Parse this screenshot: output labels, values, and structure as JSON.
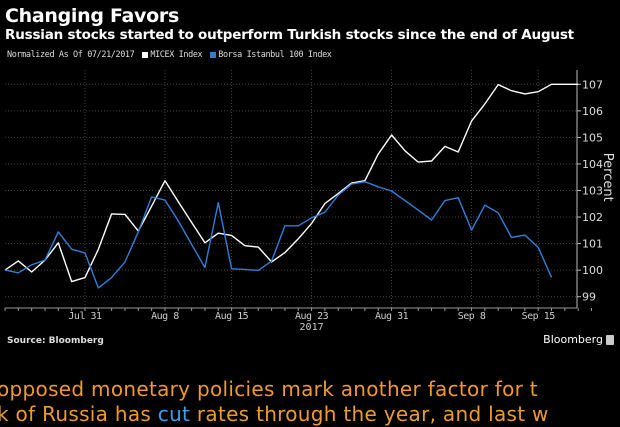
{
  "header": {
    "title": "Changing Favors",
    "subtitle": "Russian stocks started to outperform Turkish stocks since the end of August"
  },
  "legend": {
    "note": "Normalized As Of 07/21/2017",
    "items": [
      {
        "label": "MICEX Index",
        "color": "#ffffff"
      },
      {
        "label": "Borsa Istanbul 100 Index",
        "color": "#2f7fd6"
      }
    ]
  },
  "chart_data": {
    "type": "line",
    "title": "Changing Favors",
    "ylabel": "Percent",
    "xlabel": "2017",
    "ylim": [
      98.6,
      107.9
    ],
    "yticks": [
      99,
      100,
      101,
      102,
      103,
      104,
      105,
      106,
      107
    ],
    "x_tick_labels": [
      {
        "index": 6,
        "label": "Jul 31"
      },
      {
        "index": 12,
        "label": "Aug 8"
      },
      {
        "index": 17,
        "label": "Aug 15"
      },
      {
        "index": 23,
        "label": "Aug 23"
      },
      {
        "index": 29,
        "label": "Aug 31"
      },
      {
        "index": 35,
        "label": "Sep 8"
      },
      {
        "index": 40,
        "label": "Sep 15"
      }
    ],
    "x_year_label": "2017",
    "grid": true,
    "series": [
      {
        "name": "MICEX Index",
        "color": "#ffffff",
        "values": [
          100.0,
          100.35,
          99.93,
          100.38,
          101.03,
          99.57,
          99.72,
          100.78,
          102.12,
          102.1,
          101.47,
          102.41,
          103.37,
          102.58,
          101.8,
          101.03,
          101.39,
          101.31,
          100.92,
          100.87,
          100.31,
          100.66,
          101.18,
          101.76,
          102.51,
          102.89,
          103.28,
          103.37,
          104.37,
          105.09,
          104.5,
          104.07,
          104.11,
          104.66,
          104.45,
          105.62,
          106.26,
          106.99,
          106.76,
          106.64,
          106.72,
          107.0,
          107.0,
          107.0
        ]
      },
      {
        "name": "Borsa Istanbul 100 Index",
        "color": "#2f7fd6",
        "values": [
          100.0,
          99.9,
          100.2,
          100.38,
          101.44,
          100.79,
          100.65,
          99.33,
          99.72,
          100.31,
          101.44,
          102.76,
          102.64,
          101.85,
          100.97,
          100.1,
          102.54,
          100.05,
          100.03,
          99.99,
          100.34,
          101.67,
          101.67,
          101.97,
          102.18,
          102.83,
          103.24,
          103.33,
          103.14,
          102.98,
          102.62,
          102.26,
          101.89,
          102.62,
          102.73,
          101.51,
          102.45,
          102.16,
          101.23,
          101.32,
          100.86,
          99.73
        ]
      }
    ]
  },
  "footer": {
    "source": "Source: Bloomberg",
    "brand": "Bloomberg"
  },
  "article": {
    "line1": " opposed monetary policies mark another factor for t",
    "line2_before": "k of Russia has ",
    "line2_link": "cut",
    "line2_after": " rates through the year, and last w"
  }
}
